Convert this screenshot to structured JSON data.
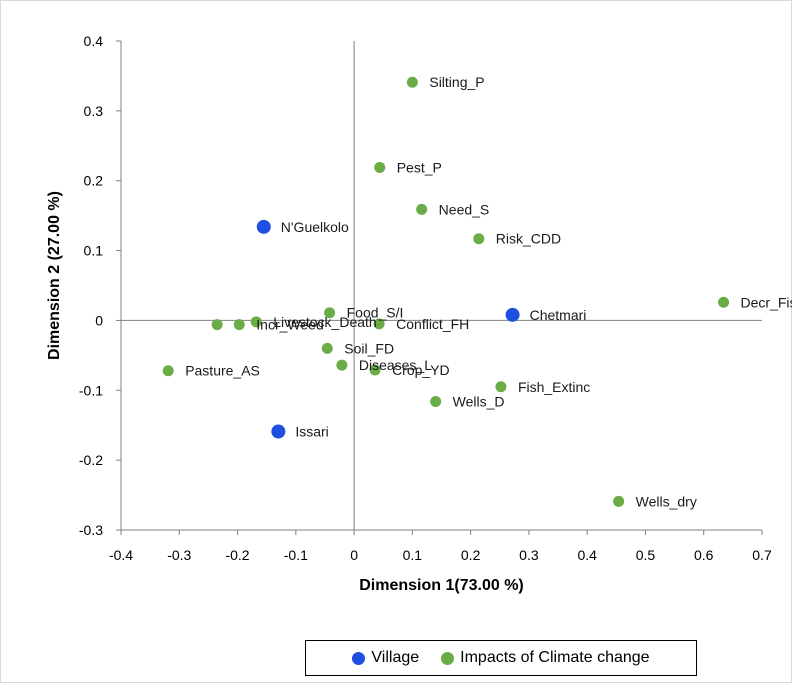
{
  "chart_data": {
    "type": "scatter",
    "title": "",
    "xlabel": "Dimension  1(73.00 %)",
    "ylabel": "Dimension  2 (27.00 %)",
    "xlim": [
      -0.4,
      0.7
    ],
    "ylim": [
      -0.3,
      0.4
    ],
    "xticks": [
      -0.4,
      -0.3,
      -0.2,
      -0.1,
      0,
      0.1,
      0.2,
      0.3,
      0.4,
      0.5,
      0.6,
      0.7
    ],
    "yticks": [
      -0.3,
      -0.2,
      -0.1,
      0,
      0.1,
      0.2,
      0.3,
      0.4
    ],
    "xtick_labels": [
      "-0.4",
      "-0.3",
      "-0.2",
      "-0.1",
      "0",
      "0.1",
      "0.2",
      "0.3",
      "0.4",
      "0.5",
      "0.6",
      "0.7"
    ],
    "ytick_labels": [
      "-0.3",
      "-0.2",
      "-0.1",
      "0",
      "0.1",
      "0.2",
      "0.3",
      "0.4"
    ],
    "grid": false,
    "legend_position": "bottom",
    "series": [
      {
        "name": "Village",
        "color": "#1f4fe0",
        "points": [
          {
            "label": "N'Guelkolo",
            "x": -0.155,
            "y": 0.134
          },
          {
            "label": "Chetmari",
            "x": 0.272,
            "y": 0.008
          },
          {
            "label": "Issari",
            "x": -0.13,
            "y": -0.159
          }
        ]
      },
      {
        "name": "Impacts of Climate change",
        "color": "#6aac45",
        "points": [
          {
            "label": "Silting_P",
            "x": 0.1,
            "y": 0.341
          },
          {
            "label": "Pest_P",
            "x": 0.044,
            "y": 0.219
          },
          {
            "label": "Need_S",
            "x": 0.116,
            "y": 0.159
          },
          {
            "label": "Risk_CDD",
            "x": 0.214,
            "y": 0.117
          },
          {
            "label": "Decr_Fish",
            "x": 0.634,
            "y": 0.026
          },
          {
            "label": "Food_S/I",
            "x": -0.042,
            "y": 0.011
          },
          {
            "label": "Conflict_FH",
            "x": 0.043,
            "y": -0.005
          },
          {
            "label": "Livestock_Death",
            "x": -0.168,
            "y": -0.002
          },
          {
            "label": "Incr_Weed",
            "x": -0.197,
            "y": -0.006
          },
          {
            "label": "",
            "x": -0.235,
            "y": -0.006
          },
          {
            "label": "Soil_FD",
            "x": -0.046,
            "y": -0.04
          },
          {
            "label": "Diseases_L",
            "x": -0.021,
            "y": -0.064
          },
          {
            "label": "Crop_YD",
            "x": 0.036,
            "y": -0.071
          },
          {
            "label": "Pasture_AS",
            "x": -0.319,
            "y": -0.072
          },
          {
            "label": "Fish_Extinc",
            "x": 0.252,
            "y": -0.095
          },
          {
            "label": "Wells_D",
            "x": 0.14,
            "y": -0.116
          },
          {
            "label": "Wells_dry",
            "x": 0.454,
            "y": -0.259
          }
        ]
      }
    ]
  },
  "legend": {
    "items": [
      {
        "label": "Village",
        "color": "#1f4fe0"
      },
      {
        "label": "Impacts of Climate change",
        "color": "#6aac45"
      }
    ]
  }
}
